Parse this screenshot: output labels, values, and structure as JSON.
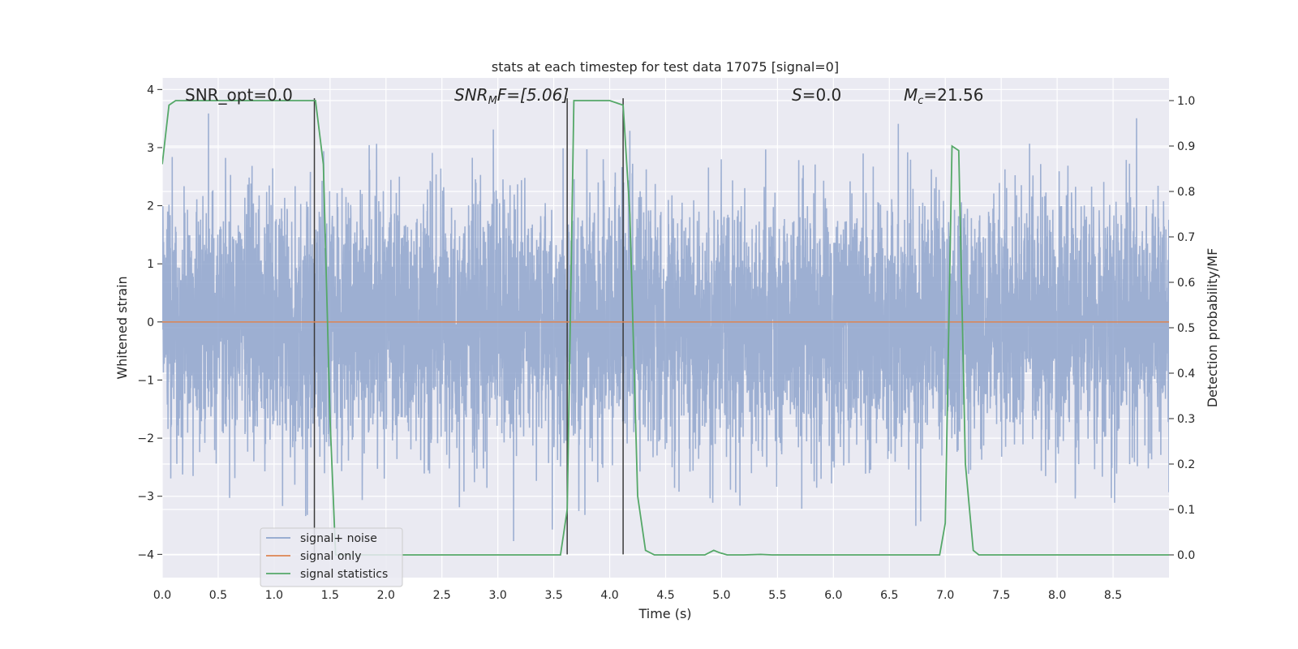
{
  "chart_data": {
    "type": "line",
    "title": "stats at each timestep for test data 17075 [signal=0]",
    "xlabel": "Time (s)",
    "ylabel": "Whitened strain",
    "y2label": "Detection probability/MF",
    "xlim": [
      0.0,
      9.0
    ],
    "ylim": [
      -4.4,
      4.2
    ],
    "y2lim": [
      -0.05,
      1.05
    ],
    "xticks": [
      "0.0",
      "0.5",
      "1.0",
      "1.5",
      "2.0",
      "2.5",
      "3.0",
      "3.5",
      "4.0",
      "4.5",
      "5.0",
      "5.5",
      "6.0",
      "6.5",
      "7.0",
      "7.5",
      "8.0",
      "8.5"
    ],
    "xtick_values": [
      0.0,
      0.5,
      1.0,
      1.5,
      2.0,
      2.5,
      3.0,
      3.5,
      4.0,
      4.5,
      5.0,
      5.5,
      6.0,
      6.5,
      7.0,
      7.5,
      8.0,
      8.5
    ],
    "yticks": [
      "4",
      "3",
      "2",
      "1",
      "0",
      "−1",
      "−2",
      "−3",
      "−4"
    ],
    "ytick_values": [
      4,
      3,
      2,
      1,
      0,
      -1,
      -2,
      -3,
      -4
    ],
    "y2ticks": [
      "1.0",
      "0.9",
      "0.8",
      "0.7",
      "0.6",
      "0.5",
      "0.4",
      "0.3",
      "0.2",
      "0.1",
      "0.0"
    ],
    "y2tick_values": [
      1.0,
      0.9,
      0.8,
      0.7,
      0.6,
      0.5,
      0.4,
      0.3,
      0.2,
      0.1,
      0.0
    ],
    "grid": true,
    "legend_position": "lower-left",
    "annotations": {
      "snr_opt": "SNR_opt=0.0",
      "snr_mf_sym": "SNR",
      "snr_mf_sub": "M",
      "snr_mf_rest": "F=[5.06]",
      "s_sym": "S",
      "s_rest": "=0.0",
      "mc_sym": "M",
      "mc_sub": "c",
      "mc_rest": "=21.56"
    },
    "noise": {
      "name": "signal+ noise",
      "color": "#8fa5cd",
      "sample_rate_hz": 2048,
      "typical_abs_max": 2.6,
      "extreme_range": [
        -3.9,
        3.65
      ]
    },
    "series": [
      {
        "name": "signal only",
        "color": "#dd8452",
        "x": [
          0.0,
          9.0
        ],
        "y": [
          0.0,
          0.0
        ]
      },
      {
        "name": "signal statistics",
        "color": "#55a868",
        "axis": "right",
        "x": [
          0.0,
          0.06,
          0.12,
          0.25,
          1.0,
          1.37,
          1.44,
          1.5,
          1.55,
          2.0,
          3.0,
          3.56,
          3.62,
          3.68,
          3.75,
          4.0,
          4.12,
          4.18,
          4.25,
          4.32,
          4.4,
          4.6,
          4.85,
          4.93,
          4.98,
          5.05,
          5.2,
          5.35,
          5.45,
          6.0,
          6.95,
          7.0,
          7.06,
          7.12,
          7.18,
          7.25,
          7.3,
          8.0,
          9.0
        ],
        "y": [
          0.86,
          0.99,
          1.0,
          1.0,
          1.0,
          1.0,
          0.86,
          0.3,
          0.0,
          0.0,
          0.0,
          0.0,
          0.1,
          1.0,
          1.0,
          1.0,
          0.99,
          0.75,
          0.13,
          0.01,
          0.0,
          0.0,
          0.0,
          0.01,
          0.005,
          0.0,
          0.0,
          0.001,
          0.0,
          0.0,
          0.0,
          0.07,
          0.9,
          0.89,
          0.2,
          0.01,
          0.0,
          0.0,
          0.0
        ]
      }
    ],
    "vertical_markers": [
      {
        "x": 1.36,
        "y_from": -4.0,
        "y_to": 3.85
      },
      {
        "x": 3.62,
        "y_from": -4.0,
        "y_to": 3.85
      },
      {
        "x": 4.12,
        "y_from": -4.0,
        "y_to": 3.85
      }
    ]
  }
}
